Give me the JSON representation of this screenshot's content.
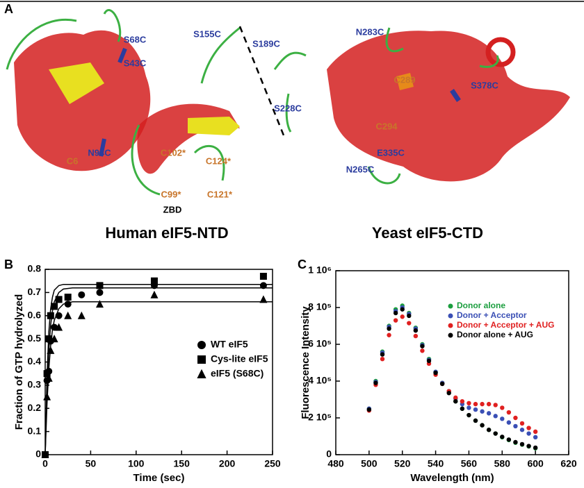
{
  "panel_a": {
    "label": "A",
    "mutation_labels": [
      {
        "color": "#2b3c9e",
        "items": [
          "S68C",
          "S43C",
          "N94C",
          "S155C",
          "S189C",
          "S228C",
          "N283C",
          "S378C",
          "E335C",
          "N265C"
        ]
      },
      {
        "color": "#c8752a",
        "items": [
          "C6",
          "C102*",
          "C124*",
          "C99*",
          "C121*",
          "C289",
          "C294"
        ]
      },
      {
        "color": "#000000",
        "items": [
          "ZBD"
        ]
      }
    ],
    "captions": [
      "Human eIF5-NTD",
      "Yeast eIF5-CTD"
    ]
  },
  "chart_data": [
    {
      "type": "scatter",
      "panel": "B",
      "xlabel": "Time (sec)",
      "ylabel": "Fraction of GTP hydrolyzed",
      "xlim": [
        0,
        250
      ],
      "xticks": [
        0,
        50,
        100,
        150,
        200,
        250
      ],
      "ylim": [
        0,
        0.8
      ],
      "yticks": [
        0,
        0.1,
        0.2,
        0.3,
        0.4,
        0.5,
        0.6,
        0.7,
        0.8
      ],
      "grid": false,
      "legend": "center-right",
      "fit_x": [
        0,
        2,
        4,
        6,
        8,
        10,
        15,
        20,
        30,
        250
      ],
      "series": [
        {
          "name": "WT eIF5",
          "color": "#000000",
          "marker": "circle",
          "x": [
            0,
            2,
            4,
            6,
            10,
            15,
            25,
            40,
            60,
            120,
            240
          ],
          "values": [
            0,
            0.32,
            0.36,
            0.49,
            0.55,
            0.6,
            0.65,
            0.69,
            0.7,
            0.73,
            0.73
          ],
          "fit_values": [
            0,
            0.28,
            0.45,
            0.56,
            0.62,
            0.66,
            0.7,
            0.715,
            0.72,
            0.72
          ]
        },
        {
          "name": "Cys-lite eIF5",
          "color": "#000000",
          "marker": "square",
          "x": [
            0,
            2,
            4,
            6,
            10,
            15,
            25,
            60,
            120,
            240
          ],
          "values": [
            0,
            0.35,
            0.5,
            0.6,
            0.64,
            0.67,
            0.68,
            0.73,
            0.75,
            0.77
          ],
          "fit_values": [
            0,
            0.34,
            0.53,
            0.63,
            0.68,
            0.71,
            0.73,
            0.735,
            0.735,
            0.735
          ]
        },
        {
          "name": "eIF5 (S68C)",
          "color": "#000000",
          "marker": "triangle",
          "x": [
            0,
            2,
            4,
            6,
            10,
            15,
            25,
            40,
            60,
            120,
            240
          ],
          "values": [
            0,
            0.25,
            0.33,
            0.45,
            0.5,
            0.55,
            0.6,
            0.6,
            0.65,
            0.69,
            0.67
          ],
          "fit_values": [
            0,
            0.22,
            0.37,
            0.47,
            0.54,
            0.58,
            0.63,
            0.65,
            0.66,
            0.66
          ]
        }
      ]
    },
    {
      "type": "scatter",
      "panel": "C",
      "xlabel": "Wavelength (nm)",
      "ylabel": "Fluorescence Intensity",
      "xlim": [
        480,
        620
      ],
      "xticks": [
        480,
        500,
        520,
        540,
        560,
        580,
        600,
        620
      ],
      "ylim": [
        0,
        1000000
      ],
      "yticks": [
        0,
        {
          "value": 200000,
          "label": "2 10⁵"
        },
        {
          "value": 400000,
          "label": "4 10⁵"
        },
        {
          "value": 600000,
          "label": "6 10⁵"
        },
        {
          "value": 800000,
          "label": "8 10⁵"
        },
        {
          "value": 1000000,
          "label": "1 10⁶"
        }
      ],
      "grid": false,
      "legend": "upper-right",
      "x": [
        500,
        504,
        508,
        512,
        516,
        520,
        524,
        528,
        532,
        536,
        540,
        544,
        548,
        552,
        556,
        560,
        564,
        568,
        572,
        576,
        580,
        584,
        588,
        592,
        596,
        600
      ],
      "series": [
        {
          "name": "Donor alone",
          "color": "#1b9e3e",
          "values": [
            250000,
            400000,
            560000,
            700000,
            790000,
            810000,
            770000,
            690000,
            600000,
            520000,
            450000,
            390000,
            340000,
            290000,
            250000,
            215000,
            185000,
            160000,
            135000,
            115000,
            95000,
            80000,
            65000,
            55000,
            45000,
            35000
          ]
        },
        {
          "name": "Donor + Acceptor",
          "color": "#3a4fb5",
          "values": [
            250000,
            395000,
            555000,
            695000,
            780000,
            800000,
            765000,
            685000,
            595000,
            515000,
            450000,
            390000,
            345000,
            305000,
            275000,
            255000,
            245000,
            235000,
            225000,
            210000,
            195000,
            175000,
            155000,
            135000,
            115000,
            95000
          ]
        },
        {
          "name": "Donor + Acceptor + AUG",
          "color": "#e02020",
          "values": [
            240000,
            380000,
            520000,
            650000,
            730000,
            750000,
            715000,
            645000,
            565000,
            495000,
            435000,
            385000,
            345000,
            310000,
            290000,
            280000,
            275000,
            275000,
            275000,
            270000,
            255000,
            230000,
            200000,
            170000,
            145000,
            125000
          ]
        },
        {
          "name": "Donor alone + AUG",
          "color": "#000000",
          "values": [
            245000,
            390000,
            545000,
            685000,
            770000,
            790000,
            755000,
            675000,
            590000,
            510000,
            445000,
            385000,
            335000,
            290000,
            250000,
            215000,
            185000,
            160000,
            135000,
            115000,
            97000,
            82000,
            68000,
            57000,
            47000,
            38000
          ]
        }
      ]
    }
  ]
}
